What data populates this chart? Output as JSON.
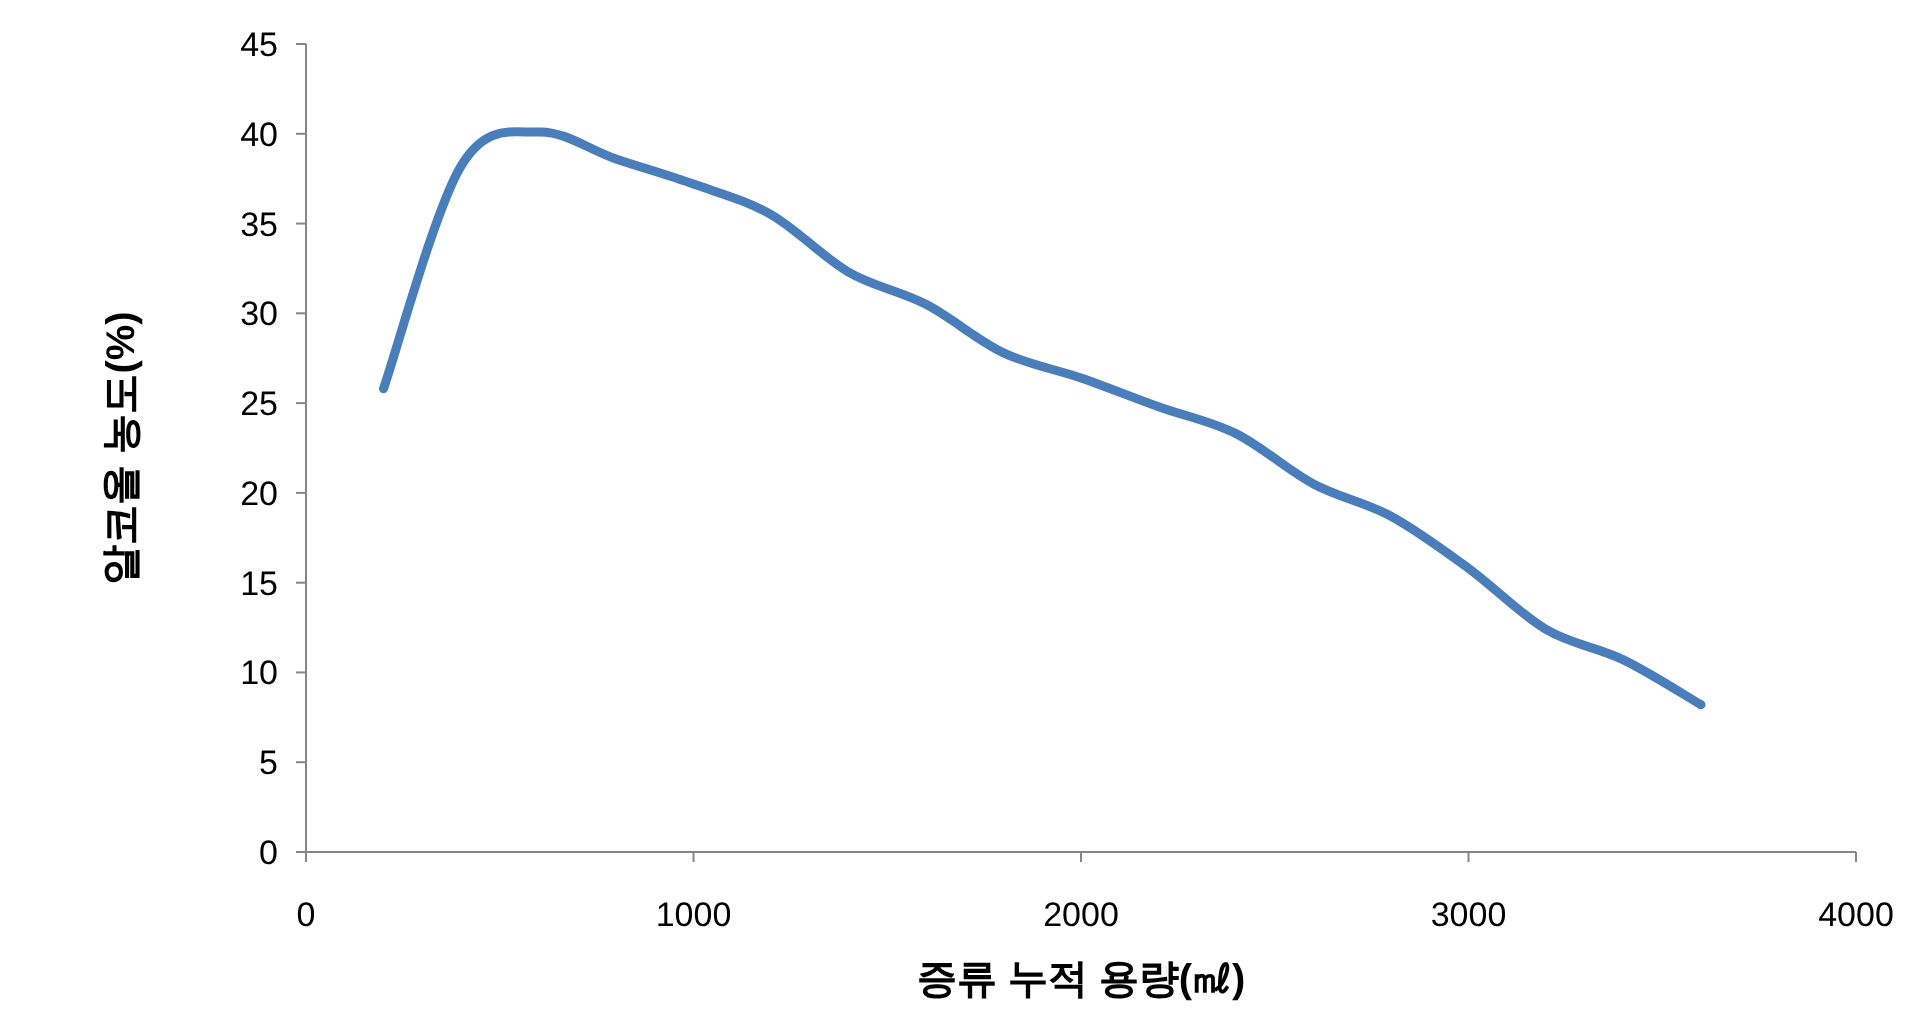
{
  "chart_data": {
    "type": "line",
    "xlabel": "증류 누적 용량(㎖)",
    "ylabel": "알코올 농도(%)",
    "x": [
      200,
      400,
      600,
      800,
      1000,
      1200,
      1400,
      1600,
      1800,
      2000,
      2200,
      2400,
      2600,
      2800,
      3000,
      3200,
      3400,
      3600
    ],
    "series": [
      {
        "color": "#4a7ebb",
        "values": [
          25.8,
          38.2,
          40.1,
          38.6,
          37.2,
          35.5,
          32.3,
          30.5,
          27.8,
          26.4,
          24.8,
          23.3,
          20.5,
          18.7,
          15.8,
          12.4,
          10.7,
          8.2
        ]
      }
    ],
    "xlim": [
      0,
      4000
    ],
    "ylim": [
      0,
      45
    ],
    "xticks": [
      0,
      1000,
      2000,
      3000,
      4000
    ],
    "yticks": [
      0,
      5,
      10,
      15,
      20,
      25,
      30,
      35,
      40,
      45
    ],
    "line_style": "solid"
  }
}
